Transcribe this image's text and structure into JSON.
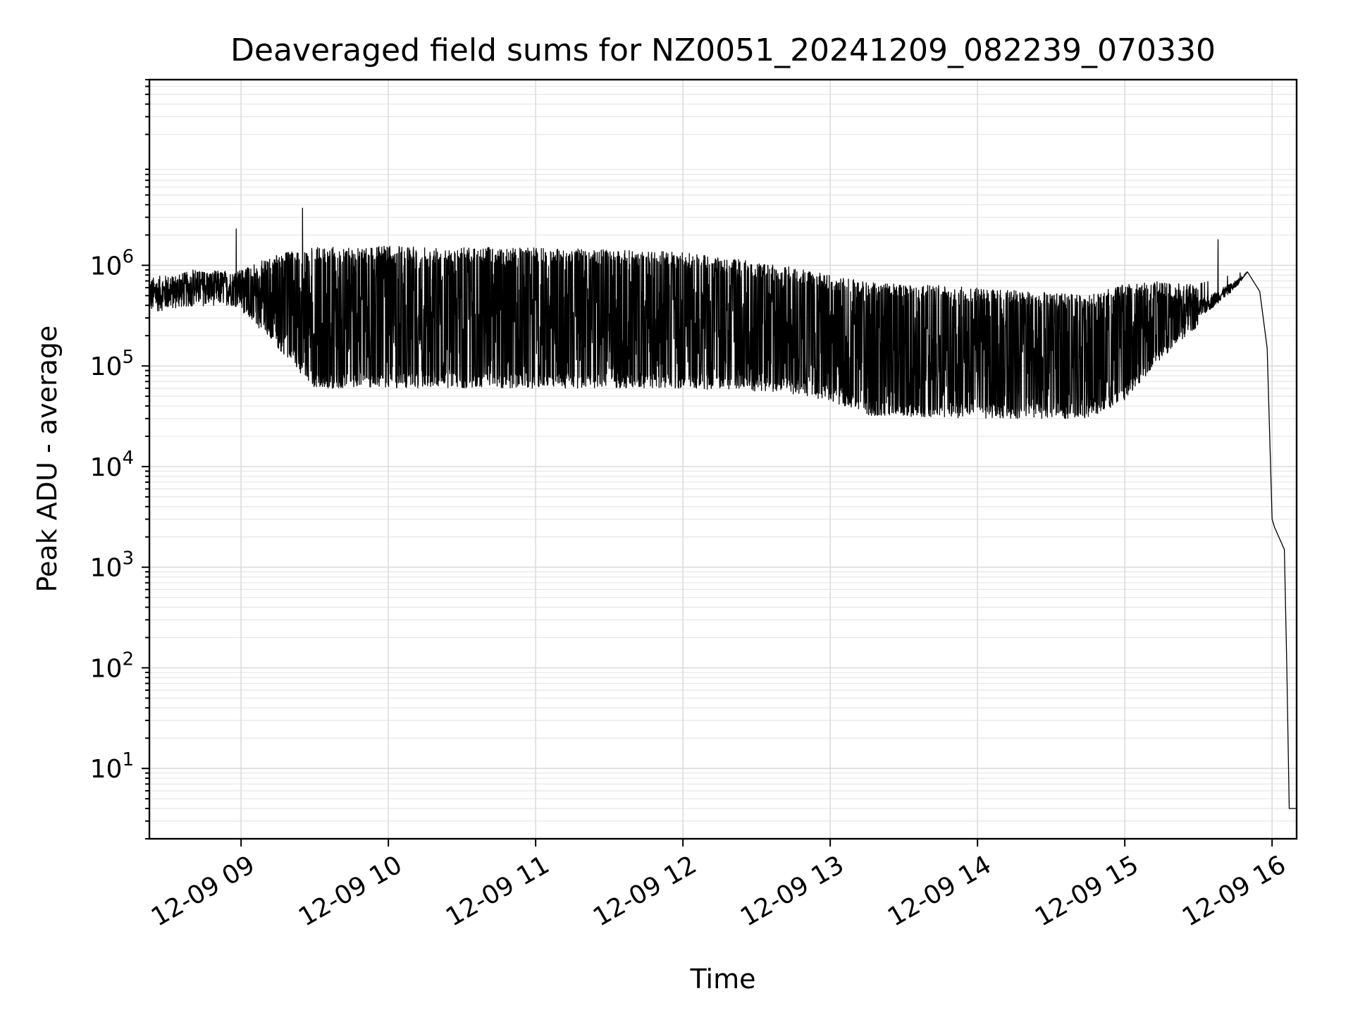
{
  "chart_data": {
    "type": "line",
    "title": "Deaveraged field sums for NZ0051_20241209_082239_070330",
    "xlabel": "Time",
    "ylabel": "Peak ADU - average",
    "yscale": "log",
    "xlim": [
      "2024-12-09 08:22:39",
      "2024-12-09 16:10:00"
    ],
    "ylim": [
      2,
      70000000
    ],
    "grid": "major and minor",
    "line_color": "#000000",
    "x_ticks": [
      "12-09 09",
      "12-09 10",
      "12-09 11",
      "12-09 12",
      "12-09 13",
      "12-09 14",
      "12-09 15",
      "12-09 16"
    ],
    "y_ticks": [
      {
        "base": "10",
        "exp": "1",
        "value": 10
      },
      {
        "base": "10",
        "exp": "2",
        "value": 100
      },
      {
        "base": "10",
        "exp": "3",
        "value": 1000
      },
      {
        "base": "10",
        "exp": "4",
        "value": 10000
      },
      {
        "base": "10",
        "exp": "5",
        "value": 100000
      },
      {
        "base": "10",
        "exp": "6",
        "value": 1000000
      }
    ],
    "series": [
      {
        "envelope": [
          {
            "t": "08:22",
            "floor": 420000,
            "peak": 600000
          },
          {
            "t": "08:40",
            "floor": 380000,
            "peak": 900000
          },
          {
            "t": "08:55",
            "floor": 480000,
            "peak": 750000
          },
          {
            "t": "09:00",
            "floor": 350000,
            "peak": 900000
          },
          {
            "t": "09:15",
            "floor": 150000,
            "peak": 1300000
          },
          {
            "t": "09:30",
            "floor": 60000,
            "peak": 1500000
          },
          {
            "t": "10:00",
            "floor": 60000,
            "peak": 1550000
          },
          {
            "t": "11:00",
            "floor": 60000,
            "peak": 1500000
          },
          {
            "t": "12:00",
            "floor": 60000,
            "peak": 1350000
          },
          {
            "t": "12:40",
            "floor": 55000,
            "peak": 1000000
          },
          {
            "t": "13:00",
            "floor": 45000,
            "peak": 800000
          },
          {
            "t": "13:15",
            "floor": 32000,
            "peak": 700000
          },
          {
            "t": "14:00",
            "floor": 30000,
            "peak": 600000
          },
          {
            "t": "14:45",
            "floor": 30000,
            "peak": 500000
          },
          {
            "t": "15:00",
            "floor": 45000,
            "peak": 650000
          },
          {
            "t": "15:15",
            "floor": 120000,
            "peak": 700000
          },
          {
            "t": "15:30",
            "floor": 250000,
            "peak": 650000
          },
          {
            "t": "15:45",
            "floor": 550000,
            "peak": 820000
          },
          {
            "t": "15:50",
            "floor": 850000,
            "peak": 880000
          }
        ],
        "spikes": [
          {
            "t": "08:58",
            "value": 2300000
          },
          {
            "t": "09:25",
            "value": 3700000
          },
          {
            "t": "15:38",
            "value": 1800000
          }
        ],
        "decline": [
          {
            "t": "15:50",
            "value": 860000
          },
          {
            "t": "15:55",
            "value": 550000
          },
          {
            "t": "15:58",
            "value": 150000
          },
          {
            "t": "16:00",
            "value": 3000
          },
          {
            "t": "16:01",
            "value": 2500
          },
          {
            "t": "16:05",
            "value": 1500
          },
          {
            "t": "16:06",
            "value": 100
          },
          {
            "t": "16:07",
            "value": 4
          },
          {
            "t": "16:10",
            "value": 4
          }
        ]
      }
    ]
  }
}
